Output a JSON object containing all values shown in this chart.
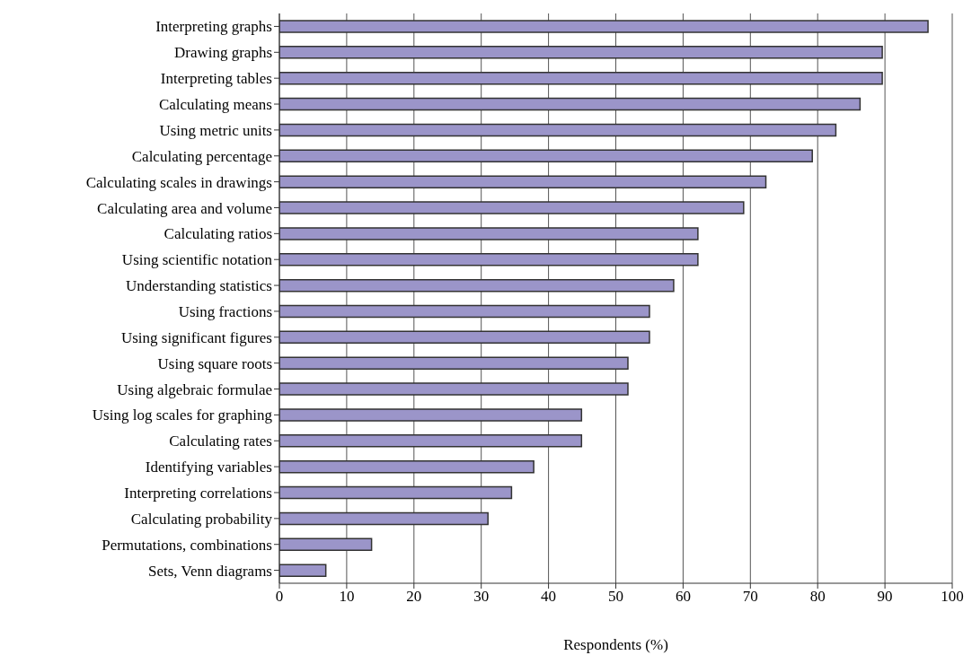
{
  "chart_data": {
    "type": "bar",
    "orientation": "horizontal",
    "xlabel": "Respondents (%)",
    "categories": [
      "Interpreting graphs",
      "Drawing graphs",
      "Interpreting tables",
      "Calculating means",
      "Using metric units",
      "Calculating percentage",
      "Calculating scales in drawings",
      "Calculating area and volume",
      "Calculating ratios",
      "Using scientific notation",
      "Understanding statistics",
      "Using fractions",
      "Using significant figures",
      "Using square roots",
      "Using algebraic formulae",
      "Using log scales for graphing",
      "Calculating rates",
      "Identifying variables",
      "Interpreting correlations",
      "Calculating probability",
      "Permutations, combinations",
      "Sets, Venn diagrams"
    ],
    "values": [
      96.4,
      89.6,
      89.6,
      86.3,
      82.7,
      79.2,
      72.3,
      69.0,
      62.2,
      62.2,
      58.6,
      55.0,
      55.0,
      51.8,
      51.8,
      44.9,
      44.9,
      37.8,
      34.5,
      31.0,
      13.7,
      6.9
    ],
    "color": "#9b95c9",
    "xlim": [
      0,
      100
    ],
    "xticks": [
      0,
      10,
      20,
      30,
      40,
      50,
      60,
      70,
      80,
      90,
      100
    ],
    "grid": "x"
  }
}
